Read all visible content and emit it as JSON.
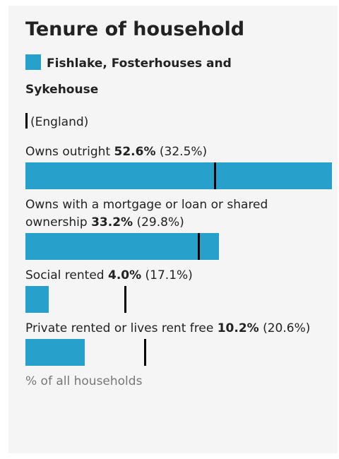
{
  "chart_data": {
    "type": "bar",
    "orientation": "horizontal",
    "title": "Tenure of household",
    "categories": [
      "Owns outright",
      "Owns with a mortgage or loan or shared ownership",
      "Social rented",
      "Private rented or lives rent free"
    ],
    "series": [
      {
        "name": "Fishlake, Fosterhouses and Sykehouse",
        "color": "#27a0cc",
        "values": [
          52.6,
          33.2,
          4.0,
          10.2
        ],
        "value_labels": [
          "52.6%",
          "33.2%",
          "4.0%",
          "10.2%"
        ]
      },
      {
        "name": "(England)",
        "color": "#000000",
        "values": [
          32.5,
          29.8,
          17.1,
          20.6
        ],
        "value_labels": [
          "(32.5%)",
          "(29.8%)",
          "(17.1%)",
          "(20.6%)"
        ]
      }
    ],
    "xlim": [
      0,
      52.6
    ],
    "axis_label": "% of all households"
  }
}
